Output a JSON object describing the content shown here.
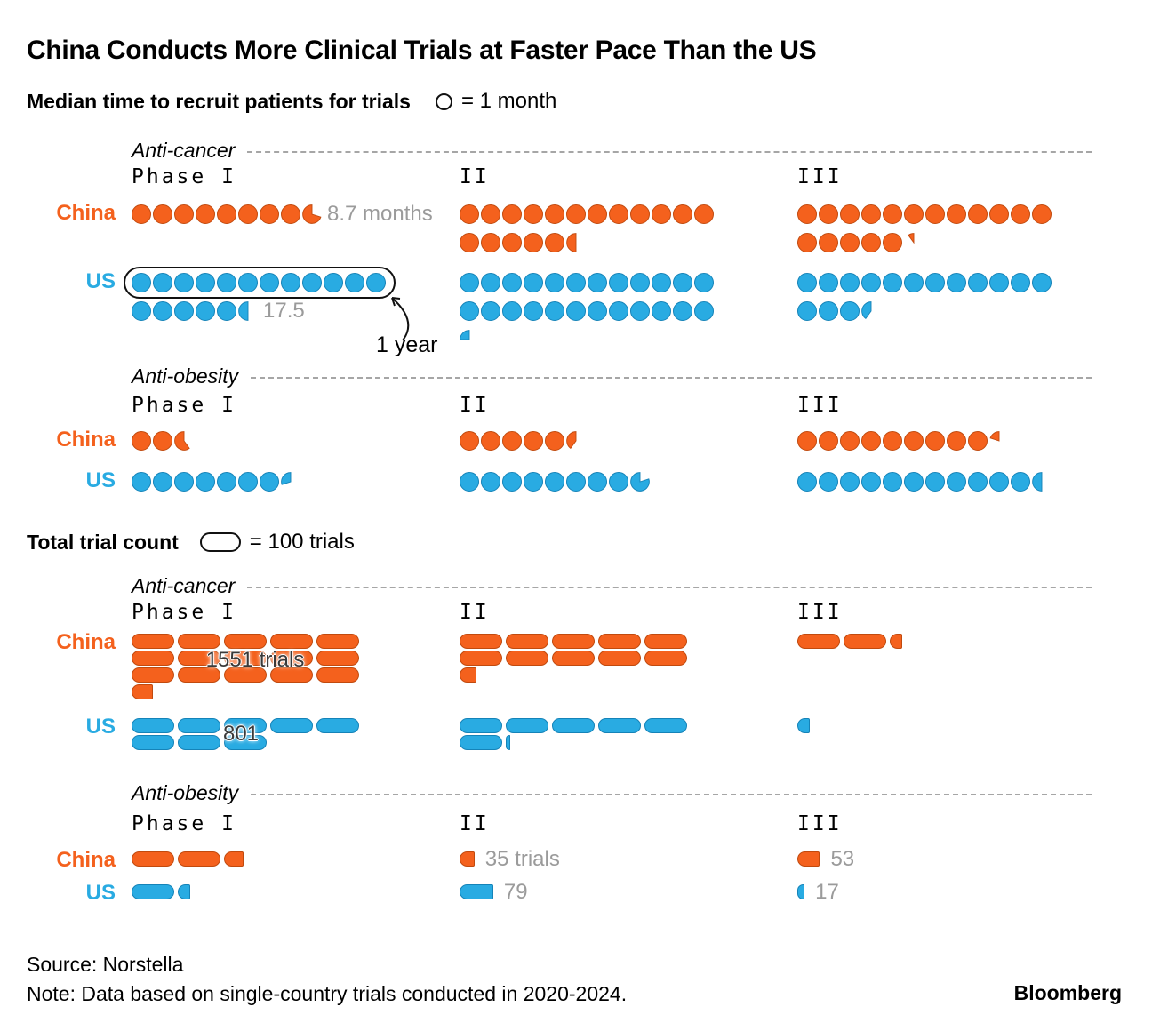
{
  "title": "China Conducts More Clinical Trials at Faster Pace Than the US",
  "colors": {
    "china": "#f4611d",
    "china_border": "#c14a0e",
    "us": "#29abe2",
    "us_border": "#1583b8",
    "annotation_gray": "#9b9b9b"
  },
  "footer": {
    "source": "Source: Norstella",
    "note": "Note: Data based on single-country trials conducted in 2020-2024.",
    "brand": "Bloomberg"
  },
  "chart_data": [
    {
      "id": "median-recruit-time",
      "type": "pictogram",
      "symbol": "circle",
      "per_symbol": 1,
      "title": "Median time to recruit patients for trials",
      "legend": "= 1 month",
      "phases": [
        "Phase I",
        "II",
        "III"
      ],
      "groups": [
        {
          "category": "Anti-cancer",
          "series": [
            {
              "name": "China",
              "color": "china",
              "values": [
                8.7,
                17.5,
                17.1
              ],
              "annotations": [
                {
                  "phase": 0,
                  "text": "8.7 months"
                }
              ]
            },
            {
              "name": "US",
              "color": "us",
              "values": [
                17.5,
                24.25,
                15.4
              ],
              "annotations": [
                {
                  "phase": 0,
                  "text": "17.5"
                }
              ],
              "callout": {
                "text": "1 year",
                "circles_boxed": 12
              }
            }
          ]
        },
        {
          "category": "Anti-obesity",
          "series": [
            {
              "name": "China",
              "color": "china",
              "values": [
                2.6,
                5.4,
                9.2
              ]
            },
            {
              "name": "US",
              "color": "us",
              "values": [
                7.3,
                8.8,
                11.5
              ]
            }
          ]
        }
      ]
    },
    {
      "id": "total-trial-count",
      "type": "pictogram",
      "symbol": "pill",
      "per_symbol": 100,
      "title": "Total trial count",
      "legend": "= 100 trials",
      "phases": [
        "Phase I",
        "II",
        "III"
      ],
      "groups": [
        {
          "category": "Anti-cancer",
          "series": [
            {
              "name": "China",
              "color": "china",
              "values": [
                1551,
                1040,
                230
              ],
              "annotations": [
                {
                  "phase": 0,
                  "text": "1551 trials",
                  "overlay": true
                }
              ]
            },
            {
              "name": "US",
              "color": "us",
              "values": [
                801,
                610,
                30
              ],
              "annotations": [
                {
                  "phase": 0,
                  "text": "801",
                  "overlay": true
                }
              ]
            }
          ]
        },
        {
          "category": "Anti-obesity",
          "series": [
            {
              "name": "China",
              "color": "china",
              "values": [
                245,
                35,
                53
              ],
              "annotations": [
                {
                  "phase": 1,
                  "text": "35 trials"
                },
                {
                  "phase": 2,
                  "text": "53"
                }
              ]
            },
            {
              "name": "US",
              "color": "us",
              "values": [
                130,
                79,
                17
              ],
              "annotations": [
                {
                  "phase": 1,
                  "text": "79"
                },
                {
                  "phase": 2,
                  "text": "17"
                }
              ]
            }
          ]
        }
      ]
    }
  ]
}
